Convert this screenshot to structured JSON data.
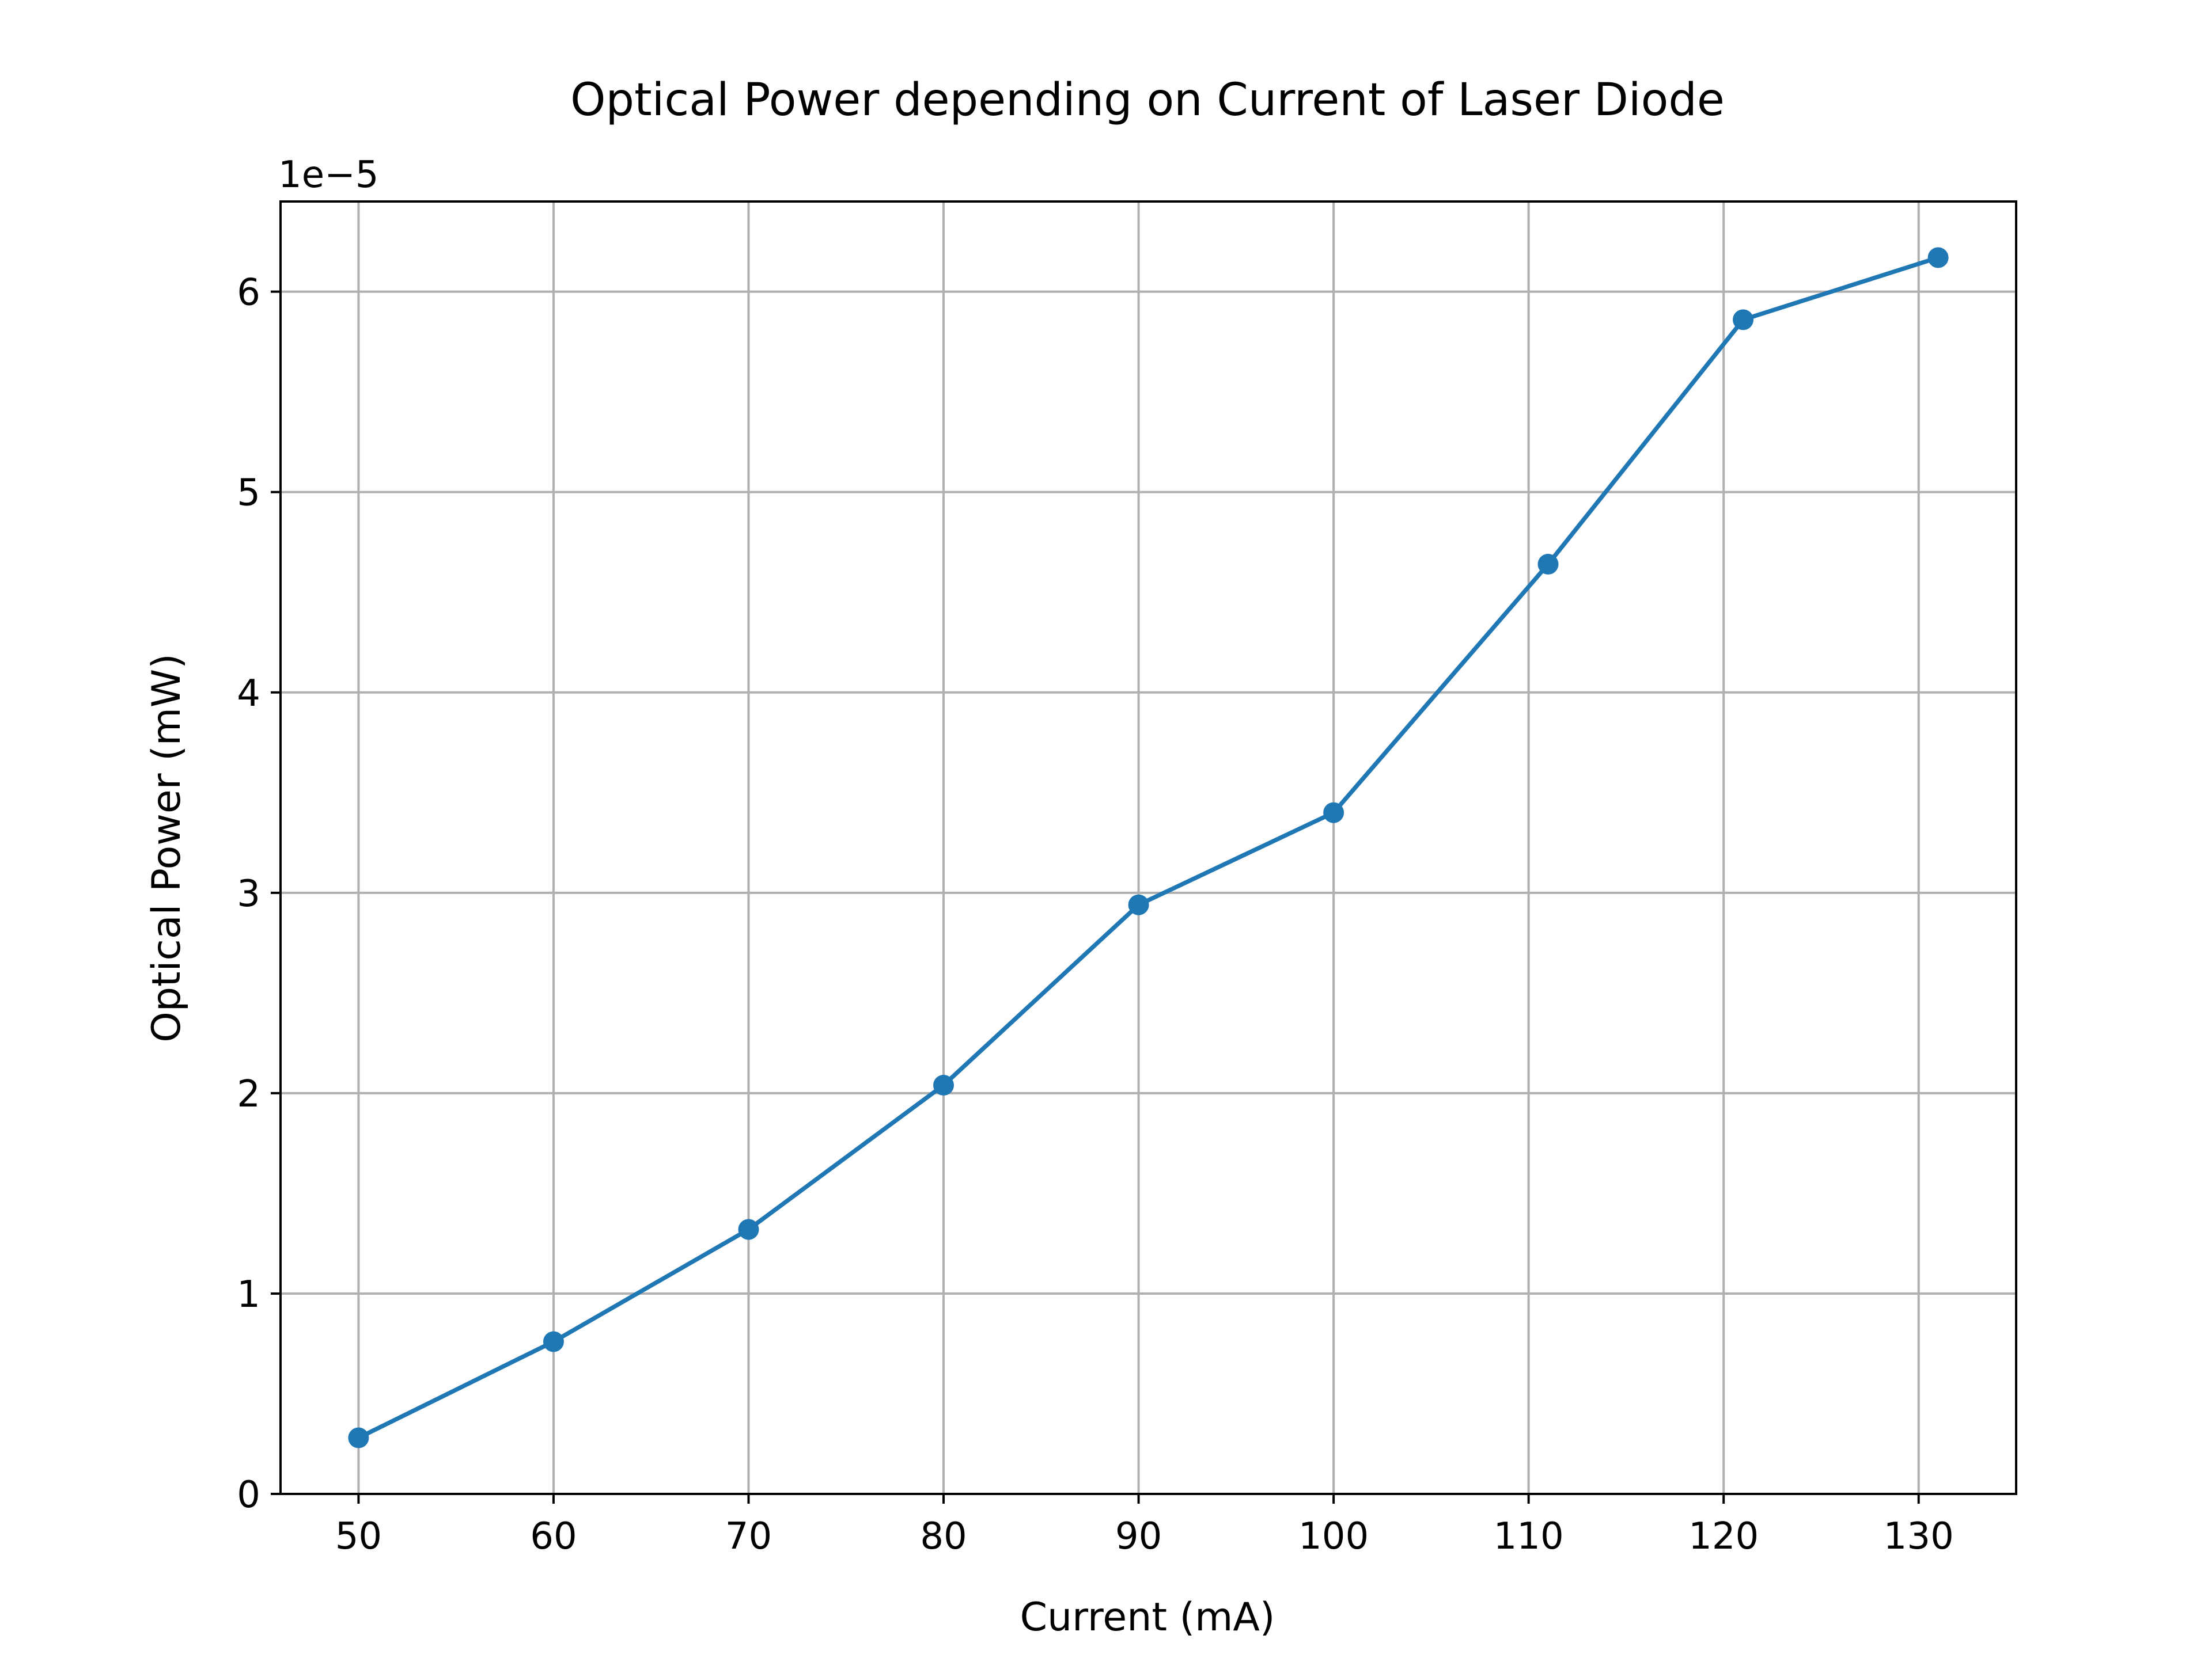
{
  "chart_data": {
    "type": "line",
    "title": "Optical Power depending on Current of Laser Diode",
    "xlabel": "Current (mA)",
    "ylabel": "Optical Power (mW)",
    "y_multiplier_label": "1e−5",
    "x": [
      50,
      60,
      70,
      80,
      90,
      100,
      111,
      121,
      131
    ],
    "series": [
      {
        "values": [
          0.28,
          0.76,
          1.32,
          2.04,
          2.94,
          3.4,
          4.64,
          5.86,
          6.17
        ],
        "color": "#1f77b4",
        "marker": "circle"
      }
    ],
    "xlim": [
      46,
      135
    ],
    "ylim": [
      0,
      6.45
    ],
    "x_ticks": [
      50,
      60,
      70,
      80,
      90,
      100,
      110,
      120,
      130
    ],
    "y_ticks": [
      0,
      1,
      2,
      3,
      4,
      5,
      6
    ],
    "grid": true,
    "legend": "none"
  }
}
